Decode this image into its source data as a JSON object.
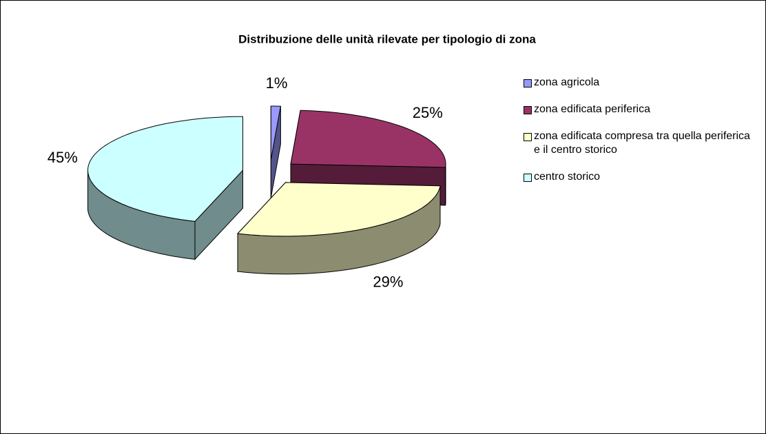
{
  "chart_data": {
    "type": "pie3d",
    "title": "Distribuzione delle unità rilevate per tipologio di zona",
    "categories": [
      "zona agricola",
      "zona edificata periferica",
      "zona edificata compresa tra quella periferica e il centro storico",
      "centro storico"
    ],
    "values": [
      1,
      25,
      29,
      45
    ],
    "value_labels": [
      "1%",
      "25%",
      "29%",
      "45%"
    ],
    "colors": [
      "#9999ff",
      "#993366",
      "#ffffcc",
      "#ccffff"
    ],
    "legend": "right"
  }
}
